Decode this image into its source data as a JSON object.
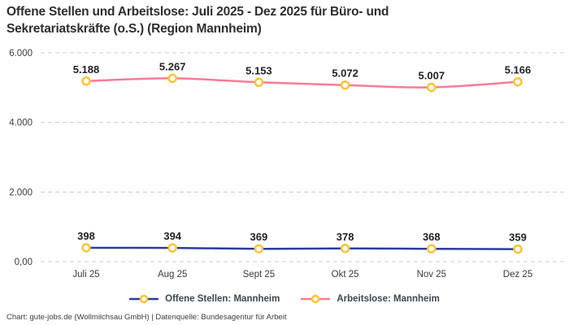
{
  "header": {
    "title_lines": [
      "Offene Stellen und Arbeitslose: Juli 2025 - Dez 2025 für Büro- und",
      "Sekretariatskräfte (o.S.) (Region Mannheim)"
    ]
  },
  "chart_data": {
    "type": "line",
    "categories": [
      "Juli 25",
      "Aug 25",
      "Sept 25",
      "Okt 25",
      "Nov 25",
      "Dez 25"
    ],
    "series": [
      {
        "name": "Offene Stellen: Mannheim",
        "values": [
          398,
          394,
          369,
          378,
          368,
          359
        ],
        "point_labels": [
          "398",
          "394",
          "369",
          "378",
          "368",
          "359"
        ],
        "color": "#2B3CA0"
      },
      {
        "name": "Arbeitslose: Mannheim",
        "values": [
          5188,
          5267,
          5153,
          5072,
          5007,
          5166
        ],
        "point_labels": [
          "5.188",
          "5.267",
          "5.153",
          "5.072",
          "5.007",
          "5.166"
        ],
        "color": "#F97B94"
      }
    ],
    "marker_style": {
      "fill": "#FFFFFF",
      "stroke": "#FEC433"
    },
    "y_axis": {
      "ylim": [
        0,
        6000
      ],
      "ticks": [
        {
          "value": 0,
          "label": "0,00"
        },
        {
          "value": 2000,
          "label": "2.000"
        },
        {
          "value": 4000,
          "label": "4.000"
        },
        {
          "value": 6000,
          "label": "6.000"
        }
      ]
    },
    "grid": "dashed-horizontal",
    "grid_color": "#CCCCCC",
    "axis_text_color": "#3a3a3a",
    "point_label_color": "#222222",
    "legend_position": "bottom"
  },
  "footer": {
    "credit": "Chart: gute-jobs.de (Wollmilchsau GmbH) | Datenquelle: Bundesagentur für Arbeit"
  }
}
